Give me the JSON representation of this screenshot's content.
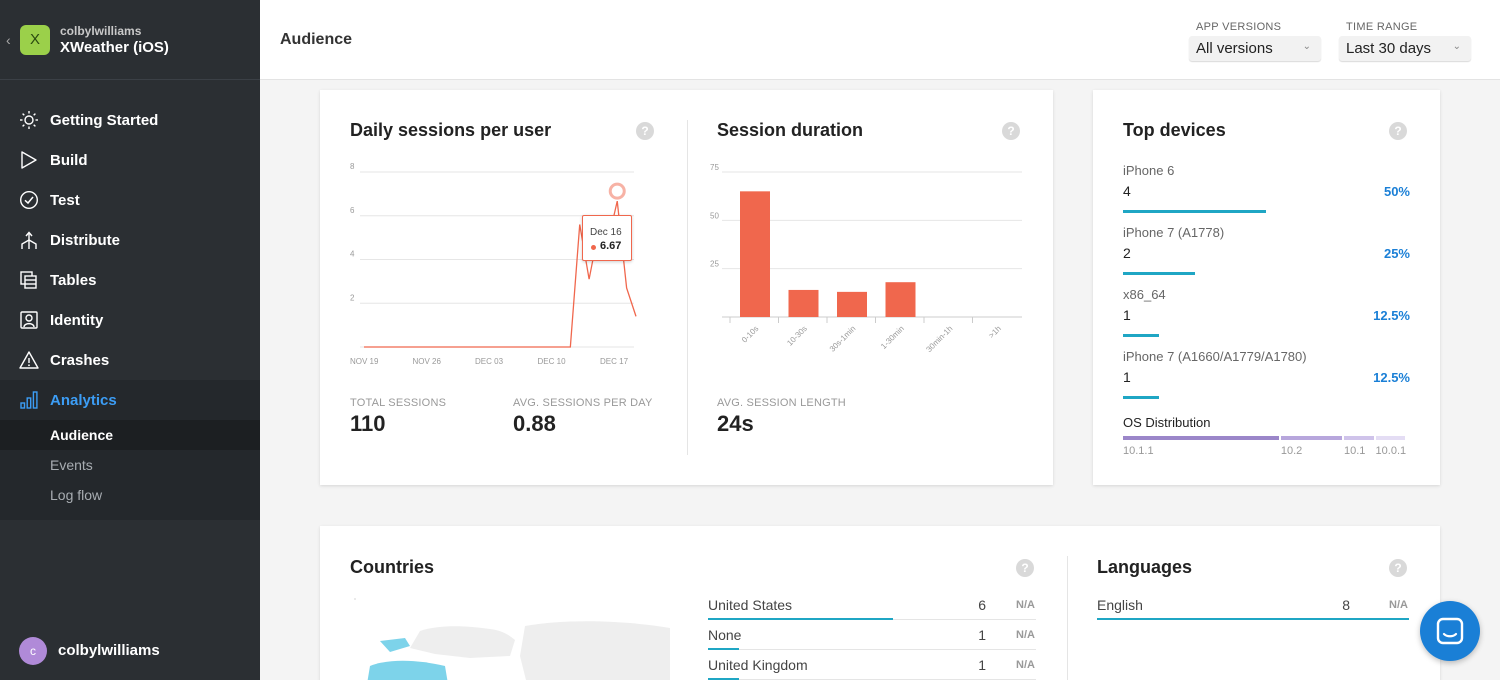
{
  "app": {
    "avatar_letter": "X",
    "owner": "colbylwilliams",
    "name": "XWeather (iOS)"
  },
  "nav": {
    "items": [
      {
        "label": "Getting Started",
        "icon": "sun-icon"
      },
      {
        "label": "Build",
        "icon": "play-icon"
      },
      {
        "label": "Test",
        "icon": "check-circle-icon"
      },
      {
        "label": "Distribute",
        "icon": "distribute-icon"
      },
      {
        "label": "Tables",
        "icon": "tables-icon"
      },
      {
        "label": "Identity",
        "icon": "identity-icon"
      },
      {
        "label": "Crashes",
        "icon": "warning-icon"
      },
      {
        "label": "Analytics",
        "icon": "bar-chart-icon"
      }
    ],
    "sub_items": [
      "Audience",
      "Events",
      "Log flow"
    ]
  },
  "user": {
    "avatar_letter": "c",
    "name": "colbylwilliams"
  },
  "header": {
    "title": "Audience",
    "app_versions_label": "APP VERSIONS",
    "app_versions_value": "All versions",
    "time_range_label": "TIME RANGE",
    "time_range_value": "Last 30 days"
  },
  "daily_sessions": {
    "title": "Daily sessions per user",
    "total_label": "TOTAL SESSIONS",
    "total_value": "110",
    "avg_label": "AVG. SESSIONS PER DAY",
    "avg_value": "0.88",
    "tooltip_date": "Dec 16",
    "tooltip_value": "6.67"
  },
  "session_duration": {
    "title": "Session duration",
    "avg_label": "AVG. SESSION LENGTH",
    "avg_value": "24s"
  },
  "chart_data": [
    {
      "type": "line",
      "title": "Daily sessions per user",
      "ylim": [
        0,
        8
      ],
      "y_ticks": [
        "2",
        "4",
        "6",
        "8"
      ],
      "x_tick_labels": [
        "NOV 19",
        "NOV 26",
        "DEC 03",
        "DEC 10",
        "DEC 17"
      ],
      "x": [
        "Nov 19",
        "Nov 20",
        "Nov 21",
        "Nov 22",
        "Nov 23",
        "Nov 24",
        "Nov 25",
        "Nov 26",
        "Nov 27",
        "Nov 28",
        "Nov 29",
        "Nov 30",
        "Dec 01",
        "Dec 02",
        "Dec 03",
        "Dec 04",
        "Dec 05",
        "Dec 06",
        "Dec 07",
        "Dec 08",
        "Dec 09",
        "Dec 10",
        "Dec 11",
        "Dec 12",
        "Dec 13",
        "Dec 14",
        "Dec 15",
        "Dec 16",
        "Dec 17",
        "Dec 18"
      ],
      "series": [
        {
          "values": [
            0,
            0,
            0,
            0,
            0,
            0,
            0,
            0,
            0,
            0,
            0,
            0,
            0,
            0,
            0,
            0,
            0,
            0,
            0,
            0,
            0,
            0,
            0,
            5.6,
            3.1,
            5.3,
            4.8,
            6.67,
            2.7,
            1.4
          ]
        }
      ],
      "highlight": {
        "x": "Dec 16",
        "y": 6.67
      },
      "color": "#f0674d"
    },
    {
      "type": "bar",
      "title": "Session duration",
      "categories": [
        "0-10s",
        "10-30s",
        "30s-1min",
        "1-30min",
        "30min-1h",
        ">1h"
      ],
      "values": [
        65,
        14,
        13,
        18,
        0,
        0
      ],
      "ylim": [
        0,
        75
      ],
      "y_ticks": [
        "25",
        "50",
        "75"
      ],
      "color": "#f0674d"
    }
  ],
  "devices": {
    "title": "Top devices",
    "items": [
      {
        "name": "iPhone 6",
        "count": "4",
        "pct": "50%",
        "fraction": 0.5
      },
      {
        "name": "iPhone 7 (A1778)",
        "count": "2",
        "pct": "25%",
        "fraction": 0.25
      },
      {
        "name": "x86_64",
        "count": "1",
        "pct": "12.5%",
        "fraction": 0.125
      },
      {
        "name": "iPhone 7 (A1660/A1779/A1780)",
        "count": "1",
        "pct": "12.5%",
        "fraction": 0.125
      }
    ],
    "os_label": "OS Distribution",
    "os": [
      {
        "version": "10.1.1",
        "share": 0.55,
        "color": "#9b86c9"
      },
      {
        "version": "10.2",
        "share": 0.22,
        "color": "#b7a6dc"
      },
      {
        "version": "10.1",
        "share": 0.11,
        "color": "#cfc3ea"
      },
      {
        "version": "10.0.1",
        "share": 0.11,
        "color": "#e4ddf4"
      }
    ]
  },
  "countries": {
    "title": "Countries",
    "rows": [
      {
        "name": "United States",
        "count": "6",
        "na": "N/A",
        "fraction": 0.75
      },
      {
        "name": "None",
        "count": "1",
        "na": "N/A",
        "fraction": 0.125
      },
      {
        "name": "United Kingdom",
        "count": "1",
        "na": "N/A",
        "fraction": 0.125
      }
    ]
  },
  "languages": {
    "title": "Languages",
    "rows": [
      {
        "name": "English",
        "count": "8",
        "na": "N/A",
        "fraction": 1.0
      }
    ]
  },
  "help_glyph": "?"
}
